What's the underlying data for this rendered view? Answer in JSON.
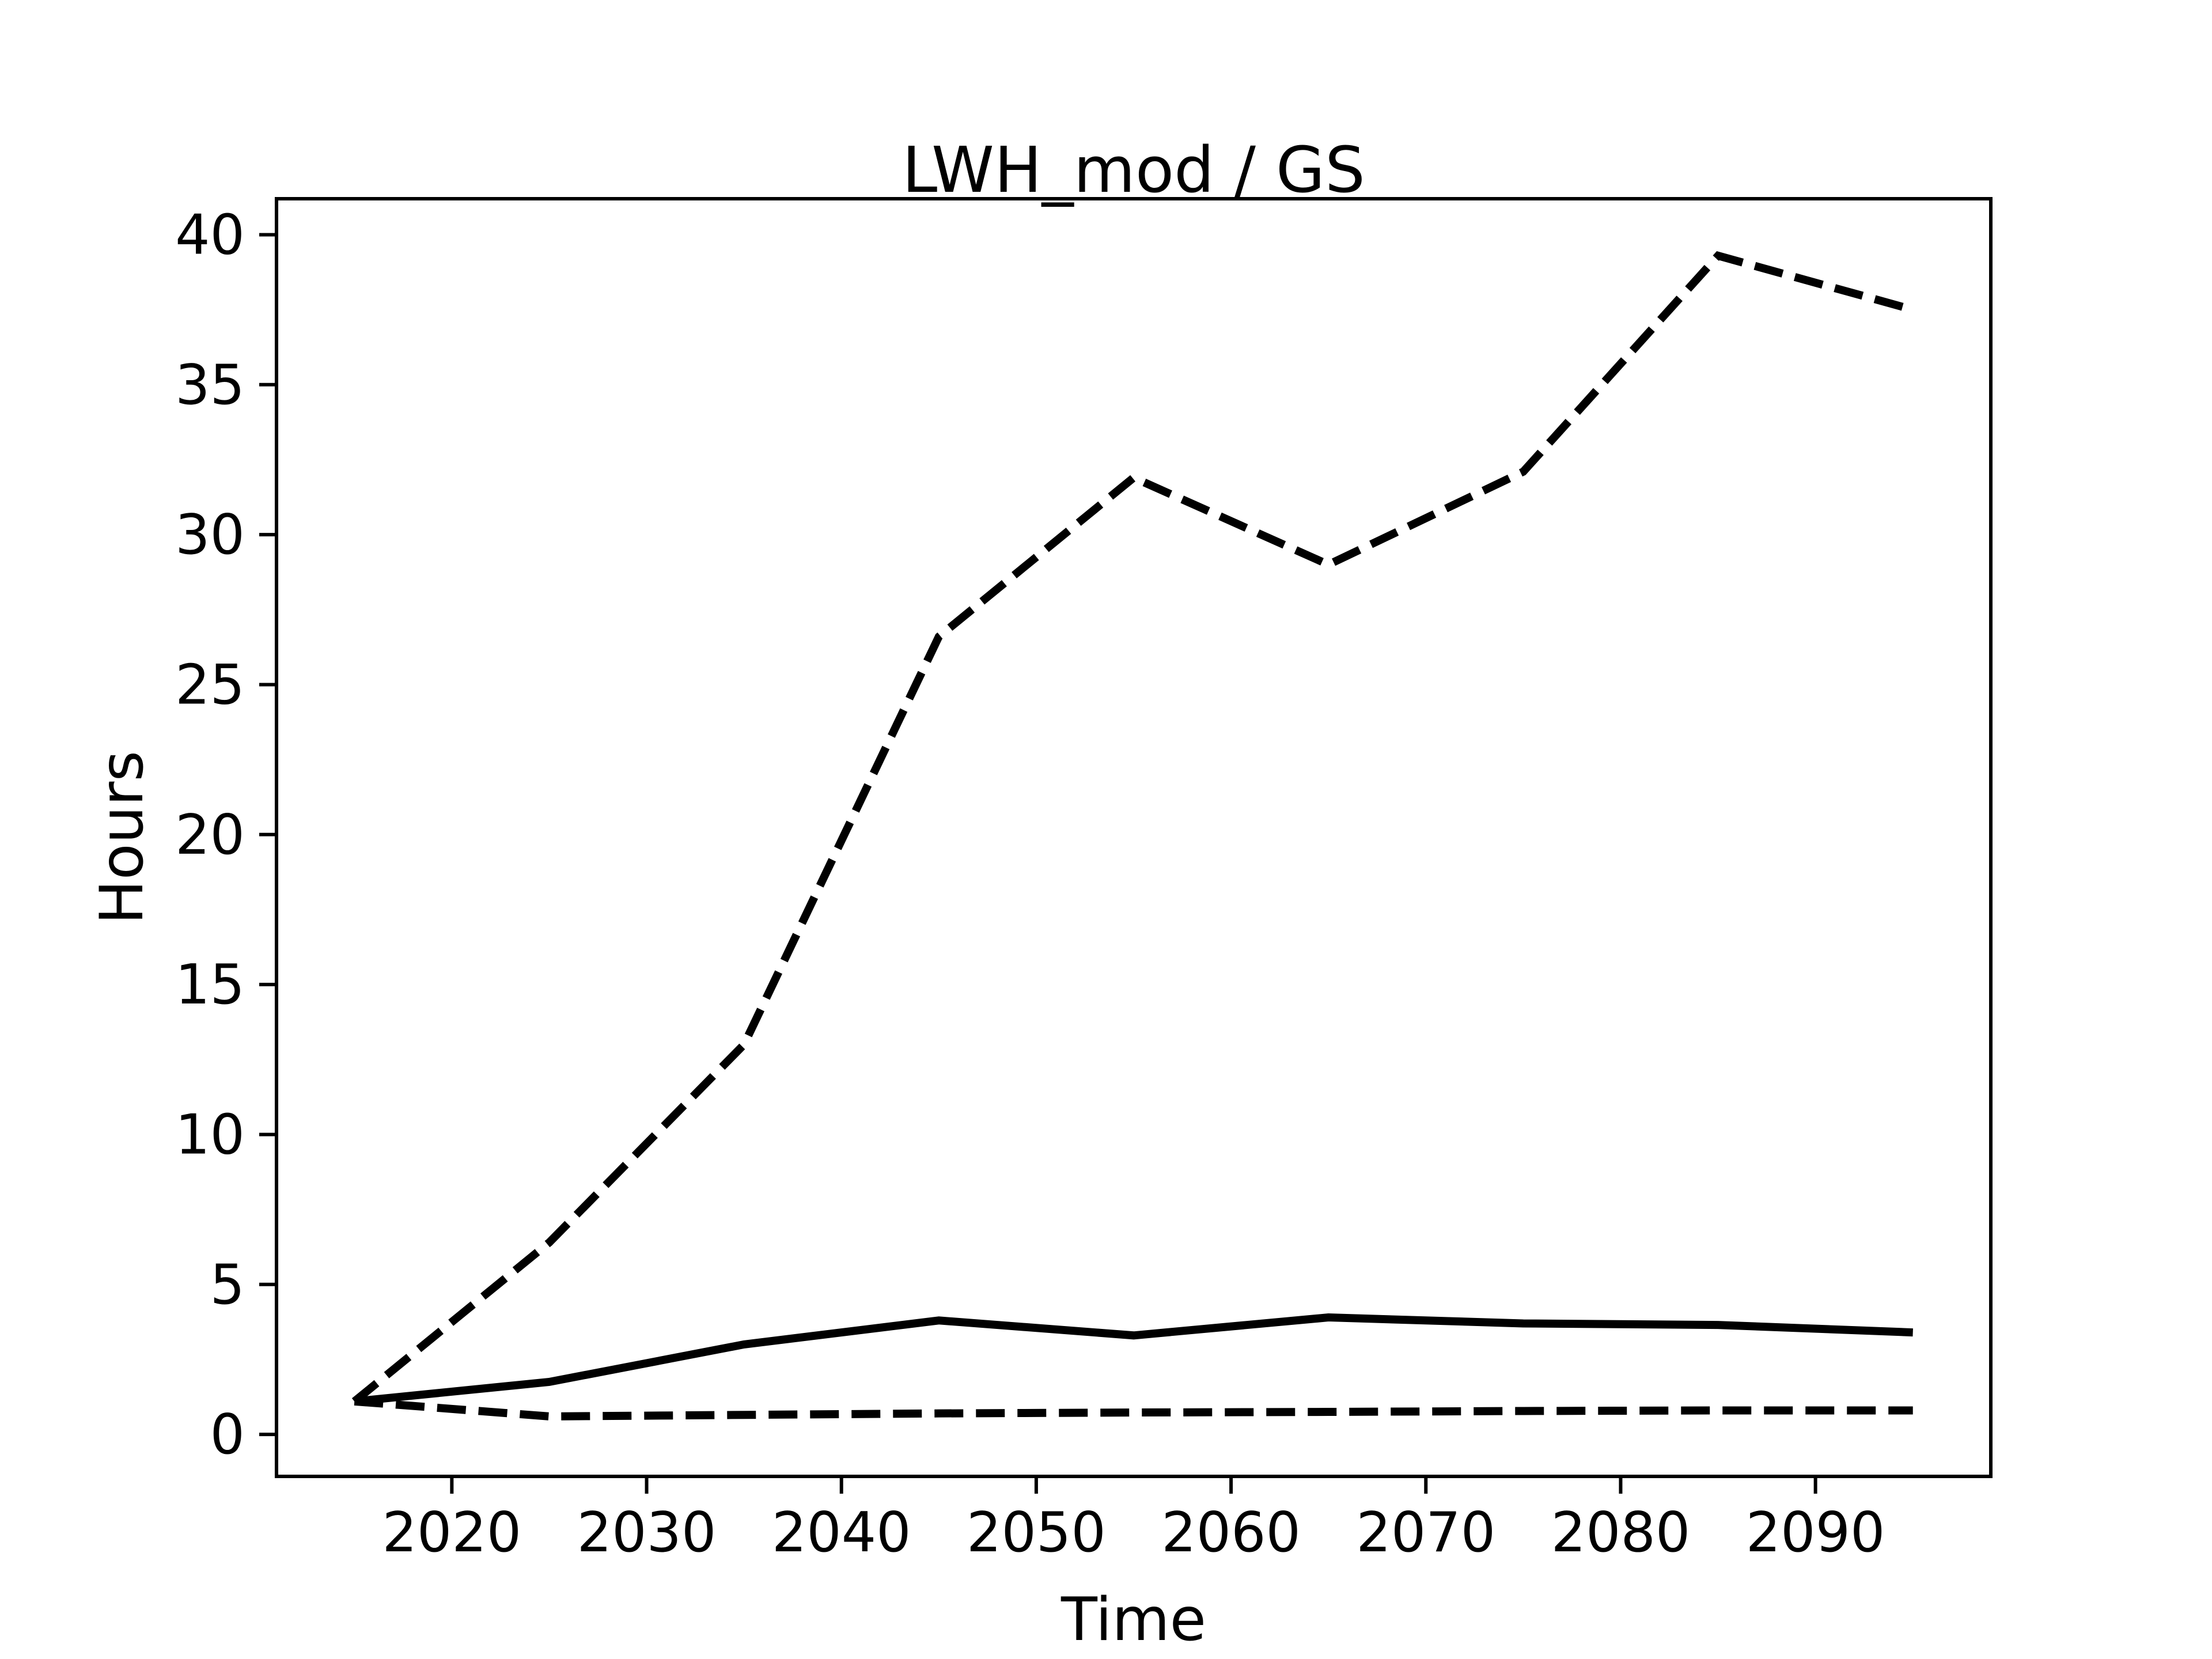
{
  "figure": {
    "background_color": "#ffffff",
    "foreground_color": "#000000"
  },
  "chart_data": {
    "type": "line",
    "title": "LWH_mod / GS",
    "xlabel": "Time",
    "ylabel": "Hours",
    "x": [
      2015,
      2025,
      2035,
      2045,
      2055,
      2065,
      2075,
      2085,
      2095
    ],
    "series": [
      {
        "name": "upper-dashed-series",
        "style": "dashed",
        "values": [
          1.1,
          6.4,
          13.0,
          26.6,
          31.9,
          29.0,
          32.1,
          39.3,
          37.5
        ]
      },
      {
        "name": "solid-series",
        "style": "solid",
        "values": [
          1.1,
          1.75,
          3.0,
          3.8,
          3.3,
          3.9,
          3.7,
          3.65,
          3.4
        ]
      },
      {
        "name": "lower-dashed-series",
        "style": "dashed",
        "values": [
          1.1,
          0.6,
          0.65,
          0.7,
          0.73,
          0.75,
          0.78,
          0.8,
          0.8
        ]
      }
    ],
    "x_ticks": [
      2020,
      2030,
      2040,
      2050,
      2060,
      2070,
      2080,
      2090
    ],
    "y_ticks": [
      0,
      5,
      10,
      15,
      20,
      25,
      30,
      35,
      40
    ],
    "xlim": [
      2011,
      2099
    ],
    "ylim": [
      -1.4,
      41.2
    ],
    "grid": false,
    "legend_position": "none",
    "line_color": "#000000"
  }
}
